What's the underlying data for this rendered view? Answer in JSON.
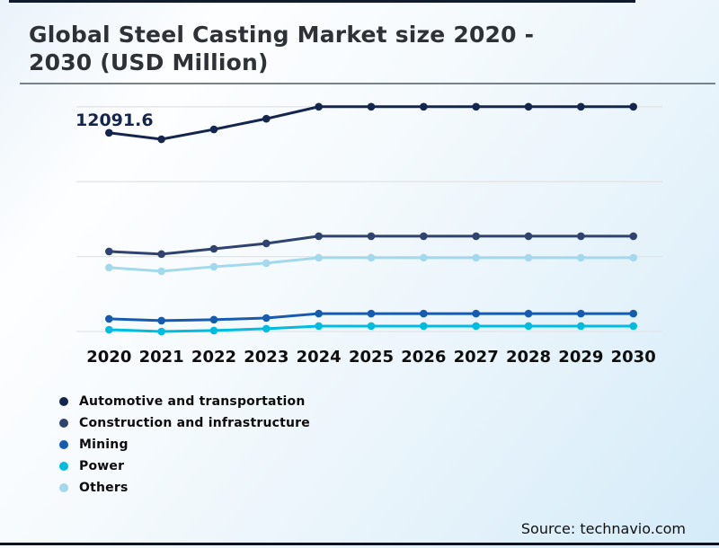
{
  "header": {
    "title": "Global Steel Casting Market size 2020 - 2030 (USD Million)"
  },
  "chart_data": {
    "type": "line",
    "title": "Global Steel Casting Market size 2020 - 2030 (USD Million)",
    "y_unit": "USD Million",
    "x": [
      "2020",
      "2021",
      "2022",
      "2023",
      "2024",
      "2025",
      "2026",
      "2027",
      "2028",
      "2029",
      "2030"
    ],
    "xlabel": "",
    "ylabel": "",
    "grid": "horizontal",
    "gridline_values": [
      0,
      4560,
      9120,
      13680
    ],
    "ylim": [
      0,
      14500
    ],
    "legend_position": "bottom-left",
    "annotation": {
      "series": "Automotive and transportation",
      "x": "2020",
      "value": 12091.6,
      "text": "12091.6"
    },
    "series": [
      {
        "name": "Automotive and transportation",
        "color": "#14264d",
        "values": [
          12091.6,
          11700,
          12300,
          12950,
          13680,
          13680,
          13680,
          13680,
          13680,
          13680,
          13680
        ]
      },
      {
        "name": "Construction and infrastructure",
        "color": "#30426e",
        "values": [
          4870,
          4710,
          5030,
          5360,
          5800,
          5800,
          5800,
          5800,
          5800,
          5800,
          5800
        ]
      },
      {
        "name": "Mining",
        "color": "#155cb0",
        "values": [
          770,
          660,
          720,
          820,
          1090,
          1090,
          1090,
          1090,
          1090,
          1090,
          1090
        ]
      },
      {
        "name": "Power",
        "color": "#00bde0",
        "values": [
          110,
          0,
          60,
          170,
          330,
          330,
          330,
          330,
          330,
          330,
          330
        ]
      },
      {
        "name": "Others",
        "color": "#a3d9ed",
        "values": [
          3890,
          3670,
          3940,
          4160,
          4490,
          4490,
          4490,
          4490,
          4490,
          4490,
          4490
        ]
      }
    ]
  },
  "footer": {
    "source": "Source: technavio.com"
  },
  "style": {
    "gridline_color": "#e2e4e6",
    "title_color": "#2e3136",
    "rule_color": "#78828c"
  }
}
